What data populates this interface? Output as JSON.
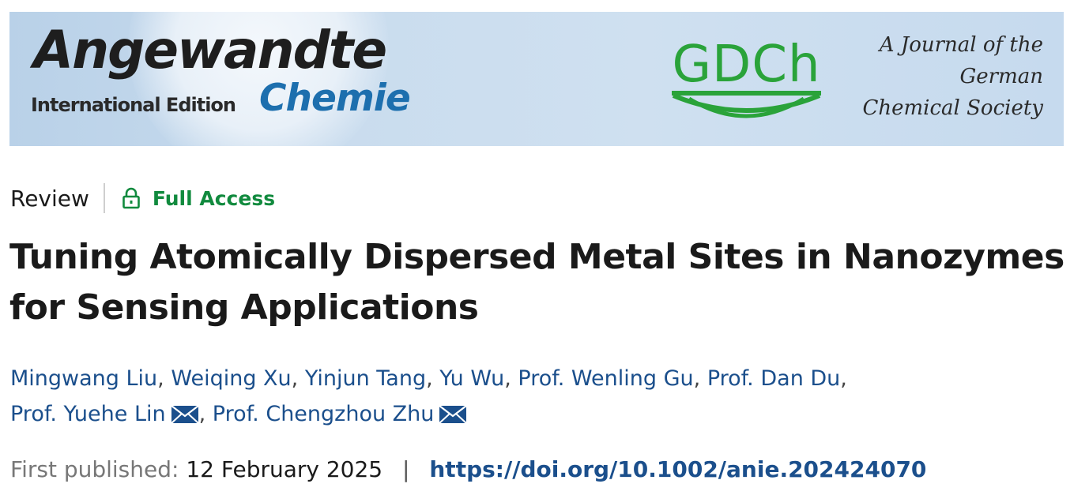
{
  "banner": {
    "journal_name": "Angewandte",
    "journal_edition": "International Edition",
    "journal_subtitle": "Chemie",
    "society_logo_text": "GDCh",
    "tagline_line1": "A Journal of the",
    "tagline_line2": "German",
    "tagline_line3": "Chemical Society"
  },
  "article": {
    "type": "Review",
    "access": "Full Access",
    "title": "Tuning Atomically Dispersed Metal Sites in Nanozymes for Sensing Applications",
    "authors": [
      {
        "name": "Mingwang Liu",
        "corresponding": false
      },
      {
        "name": "Weiqing Xu",
        "corresponding": false
      },
      {
        "name": "Yinjun Tang",
        "corresponding": false
      },
      {
        "name": "Yu Wu",
        "corresponding": false
      },
      {
        "name": "Prof. Wenling Gu",
        "corresponding": false
      },
      {
        "name": "Prof. Dan Du",
        "corresponding": false
      },
      {
        "name": "Prof. Yuehe Lin",
        "corresponding": true
      },
      {
        "name": "Prof. Chengzhou Zhu",
        "corresponding": true
      }
    ],
    "published_label": "First published:",
    "published_date": "12 February 2025",
    "separator": "|",
    "doi": "https://doi.org/10.1002/anie.202424070"
  },
  "colors": {
    "access_green": "#118a3e",
    "link_blue": "#1b4f8c",
    "gdch_green": "#2aa33a",
    "chemie_blue": "#1d6fae"
  },
  "icons": {
    "access": "lock-open-icon",
    "corresponding": "mail-icon"
  }
}
